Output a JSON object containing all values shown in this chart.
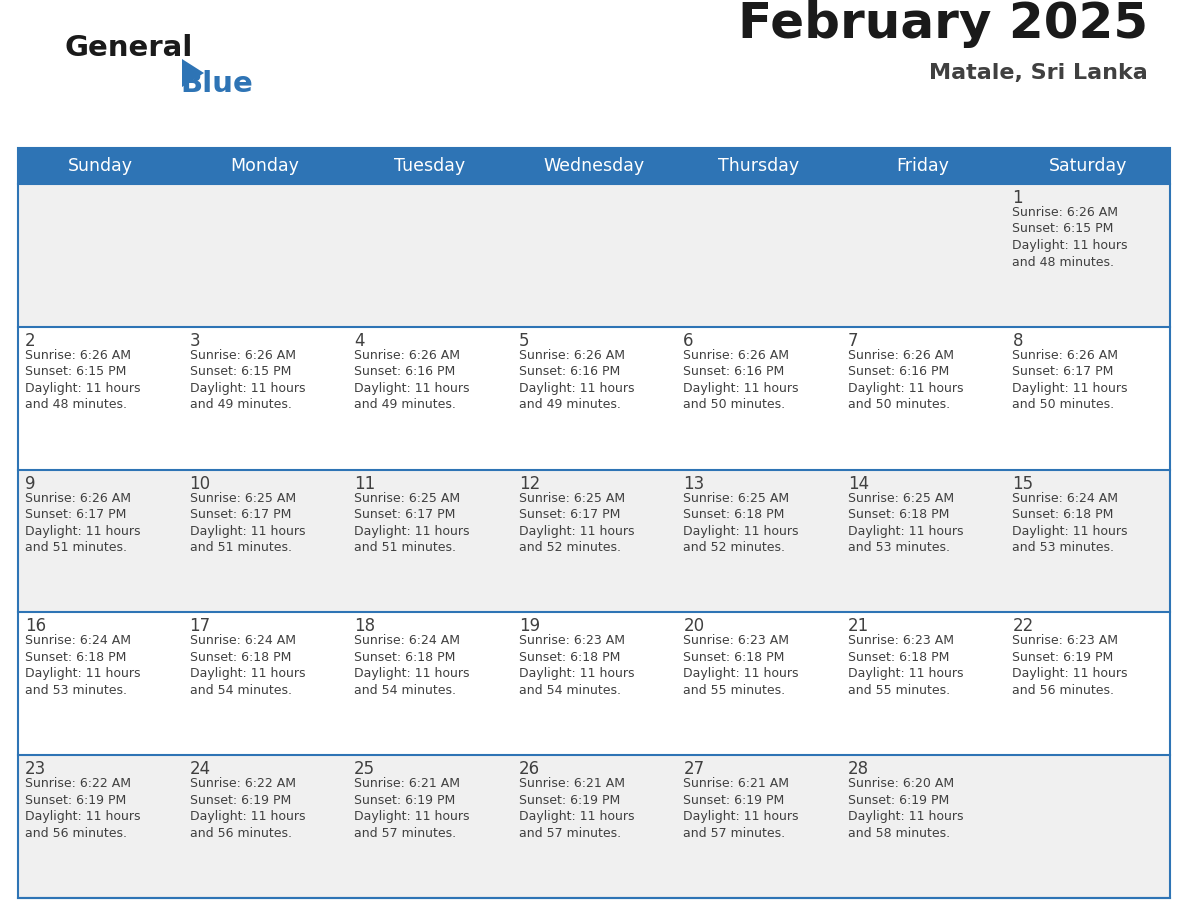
{
  "title": "February 2025",
  "subtitle": "Matale, Sri Lanka",
  "header_bg": "#2E74B5",
  "header_text_color": "#FFFFFF",
  "cell_bg_light": "#F0F0F0",
  "cell_bg_white": "#FFFFFF",
  "separator_color": "#2E74B5",
  "text_color": "#404040",
  "days_of_week": [
    "Sunday",
    "Monday",
    "Tuesday",
    "Wednesday",
    "Thursday",
    "Friday",
    "Saturday"
  ],
  "calendar_data": [
    [
      {
        "day": "",
        "sunrise": "",
        "sunset": "",
        "daylight": ""
      },
      {
        "day": "",
        "sunrise": "",
        "sunset": "",
        "daylight": ""
      },
      {
        "day": "",
        "sunrise": "",
        "sunset": "",
        "daylight": ""
      },
      {
        "day": "",
        "sunrise": "",
        "sunset": "",
        "daylight": ""
      },
      {
        "day": "",
        "sunrise": "",
        "sunset": "",
        "daylight": ""
      },
      {
        "day": "",
        "sunrise": "",
        "sunset": "",
        "daylight": ""
      },
      {
        "day": "1",
        "sunrise": "6:26 AM",
        "sunset": "6:15 PM",
        "daylight_l1": "Daylight: 11 hours",
        "daylight_l2": "and 48 minutes."
      }
    ],
    [
      {
        "day": "2",
        "sunrise": "6:26 AM",
        "sunset": "6:15 PM",
        "daylight_l1": "Daylight: 11 hours",
        "daylight_l2": "and 48 minutes."
      },
      {
        "day": "3",
        "sunrise": "6:26 AM",
        "sunset": "6:15 PM",
        "daylight_l1": "Daylight: 11 hours",
        "daylight_l2": "and 49 minutes."
      },
      {
        "day": "4",
        "sunrise": "6:26 AM",
        "sunset": "6:16 PM",
        "daylight_l1": "Daylight: 11 hours",
        "daylight_l2": "and 49 minutes."
      },
      {
        "day": "5",
        "sunrise": "6:26 AM",
        "sunset": "6:16 PM",
        "daylight_l1": "Daylight: 11 hours",
        "daylight_l2": "and 49 minutes."
      },
      {
        "day": "6",
        "sunrise": "6:26 AM",
        "sunset": "6:16 PM",
        "daylight_l1": "Daylight: 11 hours",
        "daylight_l2": "and 50 minutes."
      },
      {
        "day": "7",
        "sunrise": "6:26 AM",
        "sunset": "6:16 PM",
        "daylight_l1": "Daylight: 11 hours",
        "daylight_l2": "and 50 minutes."
      },
      {
        "day": "8",
        "sunrise": "6:26 AM",
        "sunset": "6:17 PM",
        "daylight_l1": "Daylight: 11 hours",
        "daylight_l2": "and 50 minutes."
      }
    ],
    [
      {
        "day": "9",
        "sunrise": "6:26 AM",
        "sunset": "6:17 PM",
        "daylight_l1": "Daylight: 11 hours",
        "daylight_l2": "and 51 minutes."
      },
      {
        "day": "10",
        "sunrise": "6:25 AM",
        "sunset": "6:17 PM",
        "daylight_l1": "Daylight: 11 hours",
        "daylight_l2": "and 51 minutes."
      },
      {
        "day": "11",
        "sunrise": "6:25 AM",
        "sunset": "6:17 PM",
        "daylight_l1": "Daylight: 11 hours",
        "daylight_l2": "and 51 minutes."
      },
      {
        "day": "12",
        "sunrise": "6:25 AM",
        "sunset": "6:17 PM",
        "daylight_l1": "Daylight: 11 hours",
        "daylight_l2": "and 52 minutes."
      },
      {
        "day": "13",
        "sunrise": "6:25 AM",
        "sunset": "6:18 PM",
        "daylight_l1": "Daylight: 11 hours",
        "daylight_l2": "and 52 minutes."
      },
      {
        "day": "14",
        "sunrise": "6:25 AM",
        "sunset": "6:18 PM",
        "daylight_l1": "Daylight: 11 hours",
        "daylight_l2": "and 53 minutes."
      },
      {
        "day": "15",
        "sunrise": "6:24 AM",
        "sunset": "6:18 PM",
        "daylight_l1": "Daylight: 11 hours",
        "daylight_l2": "and 53 minutes."
      }
    ],
    [
      {
        "day": "16",
        "sunrise": "6:24 AM",
        "sunset": "6:18 PM",
        "daylight_l1": "Daylight: 11 hours",
        "daylight_l2": "and 53 minutes."
      },
      {
        "day": "17",
        "sunrise": "6:24 AM",
        "sunset": "6:18 PM",
        "daylight_l1": "Daylight: 11 hours",
        "daylight_l2": "and 54 minutes."
      },
      {
        "day": "18",
        "sunrise": "6:24 AM",
        "sunset": "6:18 PM",
        "daylight_l1": "Daylight: 11 hours",
        "daylight_l2": "and 54 minutes."
      },
      {
        "day": "19",
        "sunrise": "6:23 AM",
        "sunset": "6:18 PM",
        "daylight_l1": "Daylight: 11 hours",
        "daylight_l2": "and 54 minutes."
      },
      {
        "day": "20",
        "sunrise": "6:23 AM",
        "sunset": "6:18 PM",
        "daylight_l1": "Daylight: 11 hours",
        "daylight_l2": "and 55 minutes."
      },
      {
        "day": "21",
        "sunrise": "6:23 AM",
        "sunset": "6:18 PM",
        "daylight_l1": "Daylight: 11 hours",
        "daylight_l2": "and 55 minutes."
      },
      {
        "day": "22",
        "sunrise": "6:23 AM",
        "sunset": "6:19 PM",
        "daylight_l1": "Daylight: 11 hours",
        "daylight_l2": "and 56 minutes."
      }
    ],
    [
      {
        "day": "23",
        "sunrise": "6:22 AM",
        "sunset": "6:19 PM",
        "daylight_l1": "Daylight: 11 hours",
        "daylight_l2": "and 56 minutes."
      },
      {
        "day": "24",
        "sunrise": "6:22 AM",
        "sunset": "6:19 PM",
        "daylight_l1": "Daylight: 11 hours",
        "daylight_l2": "and 56 minutes."
      },
      {
        "day": "25",
        "sunrise": "6:21 AM",
        "sunset": "6:19 PM",
        "daylight_l1": "Daylight: 11 hours",
        "daylight_l2": "and 57 minutes."
      },
      {
        "day": "26",
        "sunrise": "6:21 AM",
        "sunset": "6:19 PM",
        "daylight_l1": "Daylight: 11 hours",
        "daylight_l2": "and 57 minutes."
      },
      {
        "day": "27",
        "sunrise": "6:21 AM",
        "sunset": "6:19 PM",
        "daylight_l1": "Daylight: 11 hours",
        "daylight_l2": "and 57 minutes."
      },
      {
        "day": "28",
        "sunrise": "6:20 AM",
        "sunset": "6:19 PM",
        "daylight_l1": "Daylight: 11 hours",
        "daylight_l2": "and 58 minutes."
      },
      {
        "day": "",
        "sunrise": "",
        "sunset": "",
        "daylight_l1": "",
        "daylight_l2": ""
      }
    ]
  ]
}
